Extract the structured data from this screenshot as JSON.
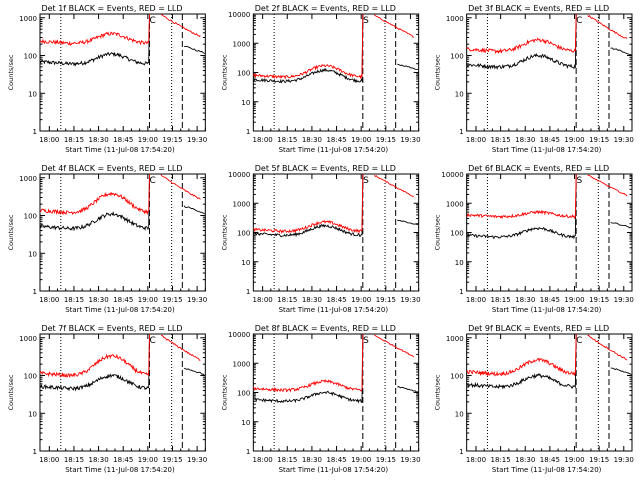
{
  "panels": [
    {
      "title": "Det 1f BLACK = Events, RED = LLD",
      "events_base": 60,
      "events_peak": 110,
      "lld_base": 210,
      "lld_peak": 380,
      "flare": "C"
    },
    {
      "title": "Det 2f BLACK = Events, RED = LLD",
      "events_base": 50,
      "events_peak": 120,
      "lld_base": 70,
      "lld_peak": 170,
      "flare": "S"
    },
    {
      "title": "Det 3f BLACK = Events, RED = LLD",
      "events_base": 50,
      "events_peak": 100,
      "lld_base": 130,
      "lld_peak": 260,
      "flare": "C"
    },
    {
      "title": "Det 4f BLACK = Events, RED = LLD",
      "events_base": 45,
      "events_peak": 110,
      "lld_base": 120,
      "lld_peak": 380,
      "flare": "C"
    },
    {
      "title": "Det 5f BLACK = Events, RED = LLD",
      "events_base": 80,
      "events_peak": 170,
      "lld_base": 110,
      "lld_peak": 230,
      "flare": "S"
    },
    {
      "title": "Det 6f BLACK = Events, RED = LLD",
      "events_base": 70,
      "events_peak": 140,
      "lld_base": 350,
      "lld_peak": 500,
      "flare": "S"
    },
    {
      "title": "Det 7f BLACK = Events, RED = LLD",
      "events_base": 45,
      "events_peak": 100,
      "lld_base": 100,
      "lld_peak": 330,
      "flare": "C"
    },
    {
      "title": "Det 8f BLACK = Events, RED = LLD",
      "events_base": 50,
      "events_peak": 100,
      "lld_base": 120,
      "lld_peak": 240,
      "flare": "S"
    },
    {
      "title": "Det 9f BLACK = Events, RED = LLD",
      "events_base": 50,
      "events_peak": 100,
      "lld_base": 110,
      "lld_peak": 260,
      "flare": "C"
    }
  ],
  "chart_data": {
    "type": "line",
    "ylabel": "Counts/sec",
    "xlabel": "Start Time (11-Jul-08 17:54:20)",
    "yscale": "log",
    "xtick_labels": [
      "18:00",
      "18:15",
      "18:30",
      "18:45",
      "19:00",
      "19:15",
      "19:30"
    ],
    "ytick_labels": [
      "1",
      "10",
      "100",
      "1000"
    ],
    "ytick_labels_alt": [
      "1",
      "10",
      "100",
      "1000",
      "10000"
    ],
    "series": [
      {
        "name": "Events",
        "color": "#000000"
      },
      {
        "name": "LLD",
        "color": "#ff0000"
      }
    ]
  },
  "colors": {
    "events": "#000000",
    "lld": "#ff0000",
    "axes": "#000000",
    "background": "#ffffff"
  }
}
